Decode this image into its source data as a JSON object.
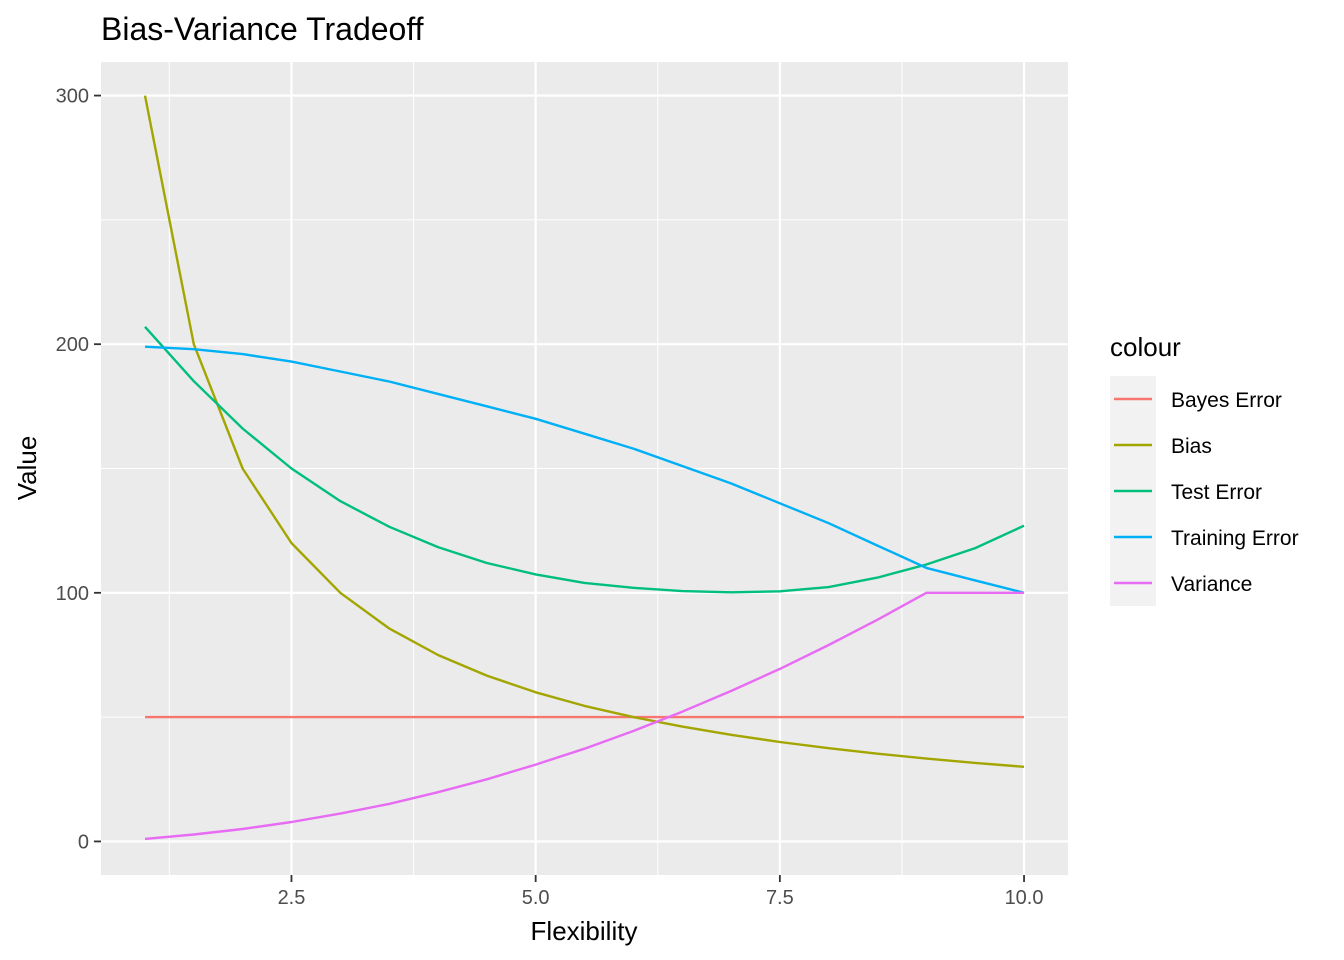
{
  "chart_data": {
    "type": "line",
    "title": "Bias-Variance Tradeoff",
    "xlabel": "Flexibility",
    "ylabel": "Value",
    "xlim": [
      0.55,
      10.45
    ],
    "ylim": [
      -13.5,
      313.5
    ],
    "x_ticks": [
      2.5,
      5.0,
      7.5,
      10.0
    ],
    "x_tick_labels": [
      "2.5",
      "5.0",
      "7.5",
      "10.0"
    ],
    "y_ticks": [
      0,
      100,
      200,
      300
    ],
    "y_tick_labels": [
      "0",
      "100",
      "200",
      "300"
    ],
    "grid": true,
    "legend": {
      "title": "colour",
      "position": "right"
    },
    "x": [
      1,
      1.5,
      2,
      2.5,
      3,
      3.5,
      4,
      4.5,
      5,
      5.5,
      6,
      6.5,
      7,
      7.5,
      8,
      8.5,
      9,
      9.5,
      10
    ],
    "series": [
      {
        "name": "Bayes Error",
        "color": "#F8766D",
        "values": [
          50,
          50,
          50,
          50,
          50,
          50,
          50,
          50,
          50,
          50,
          50,
          50,
          50,
          50,
          50,
          50,
          50,
          50,
          50
        ]
      },
      {
        "name": "Bias",
        "color": "#A3A500",
        "values": [
          300,
          200,
          150,
          120,
          100,
          85.7,
          75,
          66.7,
          60,
          54.5,
          50,
          46.2,
          42.9,
          40,
          37.5,
          35.3,
          33.3,
          31.6,
          30
        ]
      },
      {
        "name": "Test Error",
        "color": "#00BF7D",
        "values": [
          207,
          185.1,
          166.1,
          150,
          136.9,
          126.6,
          118.4,
          112,
          107.4,
          104,
          102,
          100.7,
          100.2,
          100.6,
          102.3,
          106.1,
          111.4,
          118,
          127
        ]
      },
      {
        "name": "Training Error",
        "color": "#00B0F6",
        "values": [
          199,
          198,
          196,
          193,
          189,
          185,
          180,
          175,
          170,
          164,
          158,
          151,
          144,
          136,
          128,
          119,
          110,
          105,
          100
        ]
      },
      {
        "name": "Variance",
        "color": "#E76BF3",
        "values": [
          1,
          2.8,
          5,
          7.8,
          11.2,
          15.1,
          19.8,
          25,
          30.9,
          37.3,
          44.4,
          52.2,
          60.5,
          69.4,
          79,
          89.2,
          100,
          100,
          100
        ]
      }
    ]
  }
}
